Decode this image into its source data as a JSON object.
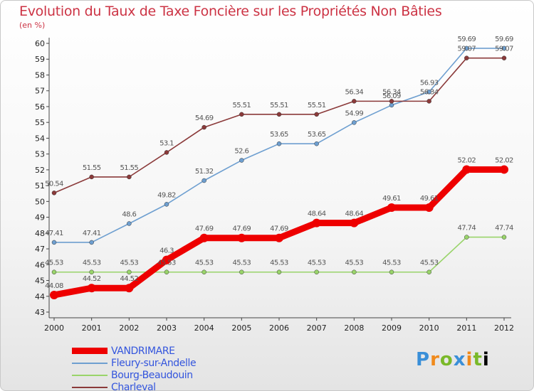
{
  "chart_data": {
    "type": "line",
    "title": "Evolution du Taux de Taxe Foncière sur les Propriétés Non Bâties",
    "ylabel": "(en %)",
    "xlabel": "",
    "ylim": [
      43,
      60
    ],
    "yticks": [
      43,
      44,
      45,
      46,
      47,
      48,
      49,
      50,
      51,
      52,
      53,
      54,
      55,
      56,
      57,
      58,
      59,
      60
    ],
    "categories": [
      "2000",
      "2001",
      "2002",
      "2003",
      "2004",
      "2005",
      "2006",
      "2007",
      "2008",
      "2009",
      "2010",
      "2011",
      "2012"
    ],
    "series": [
      {
        "name": "VANDRIMARE",
        "color": "#ee0000",
        "values": [
          44.08,
          44.52,
          44.52,
          46.3,
          47.69,
          47.69,
          47.69,
          48.64,
          48.64,
          49.61,
          49.61,
          52.02,
          52.02
        ],
        "labels": [
          "44.08",
          "44.52",
          "44.52",
          "46.3",
          "47.69",
          "47.69",
          "47.69",
          "48.64",
          "48.64",
          "49.61",
          "49.61",
          "52.02",
          "52.02"
        ]
      },
      {
        "name": "Fleury-sur-Andelle",
        "color": "#6e9fd0",
        "values": [
          47.41,
          47.41,
          48.6,
          49.82,
          51.32,
          52.6,
          53.65,
          53.65,
          54.99,
          56.09,
          56.93,
          59.69,
          59.69
        ],
        "labels": [
          "47.41",
          "47.41",
          "48.6",
          "49.82",
          "51.32",
          "52.6",
          "53.65",
          "53.65",
          "54.99",
          "56.09",
          "56.93",
          "59.69",
          "59.69"
        ]
      },
      {
        "name": "Bourg-Beaudouin",
        "color": "#99d46a",
        "values": [
          45.53,
          45.53,
          45.53,
          45.53,
          45.53,
          45.53,
          45.53,
          45.53,
          45.53,
          45.53,
          45.53,
          47.74,
          47.74
        ],
        "labels": [
          "45.53",
          "45.53",
          "45.53",
          "45.53",
          "45.53",
          "45.53",
          "45.53",
          "45.53",
          "45.53",
          "45.53",
          "45.53",
          "47.74",
          "47.74"
        ]
      },
      {
        "name": "Charleval",
        "color": "#8b3a3a",
        "values": [
          50.54,
          51.55,
          51.55,
          53.1,
          54.69,
          55.51,
          55.51,
          55.51,
          56.34,
          56.34,
          56.34,
          59.07,
          59.07
        ],
        "labels": [
          "50.54",
          "51.55",
          "51.55",
          "53.1",
          "54.69",
          "55.51",
          "55.51",
          "55.51",
          "56.34",
          "56.34",
          "56.34",
          "59.07",
          "59.07"
        ]
      }
    ],
    "legend_position": "bottom-left",
    "grid": false
  },
  "logo": {
    "letters": [
      "P",
      "r",
      "o",
      "x",
      "i",
      "t",
      "i"
    ]
  }
}
